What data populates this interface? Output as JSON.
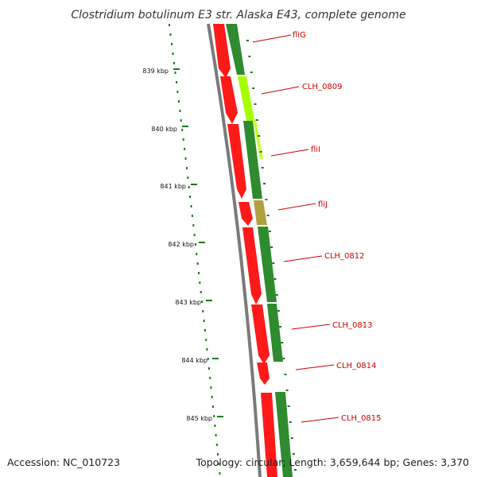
{
  "title": "Clostridium botulinum E3 str. Alaska E43, complete genome",
  "footer": {
    "accession": "Accession: NC_010723",
    "summary": "Topology: circular; Length: 3,659,644 bp; Genes: 3,370"
  },
  "ruler_ticks": [
    {
      "label": "839 kbp"
    },
    {
      "label": "840 kbp"
    },
    {
      "label": "841 kbp"
    },
    {
      "label": "842 kbp"
    },
    {
      "label": "843 kbp"
    },
    {
      "label": "844 kbp"
    },
    {
      "label": "845 kbp"
    }
  ],
  "gene_labels": [
    {
      "name": "fliG"
    },
    {
      "name": "CLH_0809"
    },
    {
      "name": "fliI"
    },
    {
      "name": "fliJ"
    },
    {
      "name": "CLH_0812"
    },
    {
      "name": "CLH_0813"
    },
    {
      "name": "CLH_0814"
    },
    {
      "name": "CLH_0815"
    }
  ],
  "colors": {
    "cds": "#ff1a1a",
    "gene": "#2e8b2e",
    "gene_highlight": "#a6ff00",
    "backbone": "#7a7a7a",
    "ruler": "#1a7a1a",
    "label": "#cc0000"
  }
}
